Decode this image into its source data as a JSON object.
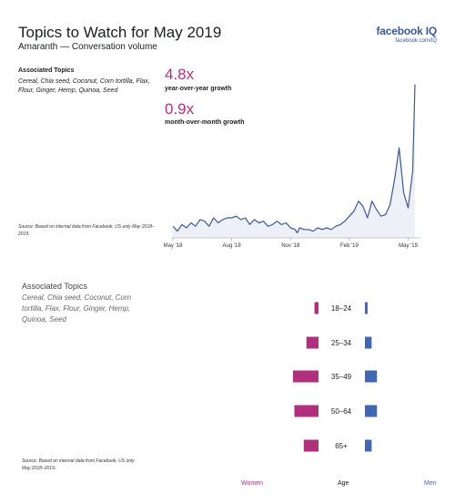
{
  "header": {
    "title": "Topics to Watch for May 2019",
    "subtitle": "Amaranth — Conversation volume"
  },
  "brand": {
    "name": "facebook IQ",
    "url": "facebook.com/IQ"
  },
  "topics": {
    "heading": "Associated Topics",
    "text": "Cereal, Chia seed, Coconut, Corn tortilla, Flax, Flour, Ginger, Hemp, Quinoa, Seed"
  },
  "stats": {
    "yoy_value": "4.8x",
    "yoy_label": "year-over-year growth",
    "mom_value": "0.9x",
    "mom_label": "month-over-month growth"
  },
  "source_top": "Source: Based on internal data from Facebook, US only May 2018–2019.",
  "source_bottom": "Source: Based on internal data from Facebook, US only May 2018–2019.",
  "legend": {
    "women": "Women",
    "age": "Age",
    "men": "Men"
  },
  "colors": {
    "line": "#3b5998",
    "area": "#eef0f7",
    "women": "#b0307d",
    "men": "#4267b2",
    "accent": "#b0307d"
  },
  "chart_data": [
    {
      "type": "area",
      "title": "",
      "xlabel": "",
      "ylabel": "",
      "x_ticks": [
        "May '18",
        "Aug '18",
        "Nov '18",
        "Feb '19",
        "May '19"
      ],
      "x_tick_positions": [
        0,
        13,
        26,
        39,
        52
      ],
      "y_axis_shown": false,
      "ylim": [
        0,
        100
      ],
      "grid": false,
      "x": [
        0,
        1,
        2,
        3,
        4,
        5,
        6,
        7,
        8,
        9,
        10,
        11,
        12,
        13,
        14,
        15,
        16,
        17,
        18,
        19,
        20,
        21,
        22,
        23,
        24,
        25,
        26,
        27,
        27.5,
        28,
        29,
        30,
        31,
        32,
        33,
        34,
        35,
        36,
        37,
        38,
        39,
        40,
        41,
        42,
        43,
        44,
        45,
        46,
        47,
        48,
        49,
        50,
        51,
        52,
        53,
        53.5
      ],
      "values": [
        7,
        4,
        8,
        6,
        9,
        7,
        11,
        10,
        7,
        12,
        9,
        11,
        12,
        12,
        13,
        11,
        12,
        8,
        11,
        9,
        10,
        7,
        8,
        10,
        8,
        9,
        6,
        5,
        3,
        6,
        5,
        5,
        4,
        6,
        5,
        6,
        5,
        7,
        8,
        10,
        13,
        16,
        22,
        19,
        12,
        22,
        17,
        13,
        14,
        20,
        35,
        54,
        27,
        18,
        40,
        92
      ]
    },
    {
      "type": "bar",
      "title": "",
      "categories": [
        "18–24",
        "25–34",
        "35–49",
        "50–64",
        "65+"
      ],
      "xlabel": "Age",
      "series": [
        {
          "name": "Women",
          "values": [
            3,
            9,
            19,
            18,
            11
          ]
        },
        {
          "name": "Men",
          "values": [
            2,
            5,
            9,
            9,
            5
          ]
        }
      ]
    }
  ]
}
